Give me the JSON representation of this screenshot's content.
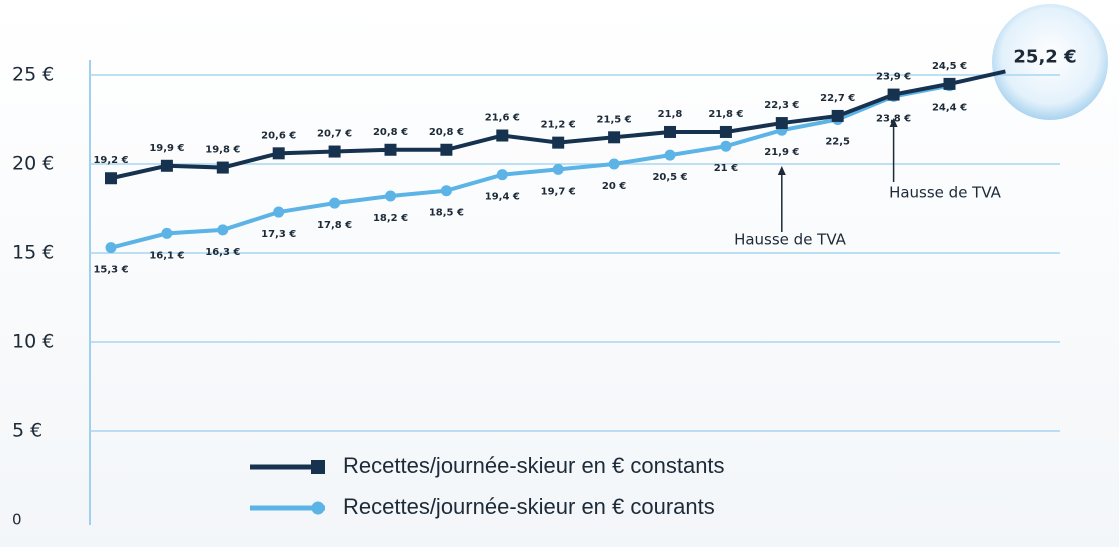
{
  "chart_data": {
    "type": "line",
    "categories": [
      null,
      null,
      null,
      null,
      null,
      null,
      null,
      null,
      null,
      null,
      null,
      null,
      null,
      null,
      null,
      null,
      null
    ],
    "series": [
      {
        "name": "Recettes/journée-skieur en € constants",
        "color": "#16324f",
        "marker": "square",
        "values": [
          19.2,
          19.9,
          19.8,
          20.6,
          20.7,
          20.8,
          20.8,
          21.6,
          21.2,
          21.5,
          21.8,
          21.8,
          22.3,
          22.7,
          23.9,
          24.5,
          25.2
        ],
        "value_labels": [
          "19,2 €",
          "19,9 €",
          "19,8 €",
          "20,6 €",
          "20,7 €",
          "20,8 €",
          "20,8 €",
          "21,6 €",
          "21,2 €",
          "21,5 €",
          "21,8",
          "21,8 €",
          "22,3 €",
          "22,7 €",
          "23,9 €",
          "24,5 €",
          "25,2 €"
        ]
      },
      {
        "name": "Recettes/journée-skieur en € courants",
        "color": "#5bb3e6",
        "marker": "circle",
        "values": [
          15.3,
          16.1,
          16.3,
          17.3,
          17.8,
          18.2,
          18.5,
          19.4,
          19.7,
          20,
          20.5,
          21,
          21.9,
          22.5,
          23.8,
          24.4,
          null
        ],
        "value_labels": [
          "15,3 €",
          "16,1 €",
          "16,3 €",
          "17,3 €",
          "17,8 €",
          "18,2 €",
          "18,5 €",
          "19,4 €",
          "19,7 €",
          "20 €",
          "20,5 €",
          "21 €",
          "21,9 €",
          "22,5",
          "23,8 €",
          "24,4 €",
          null
        ]
      }
    ],
    "ylim": [
      0,
      25.5
    ],
    "yticks": [
      0,
      {
        "value": 5,
        "label": "5 €"
      },
      {
        "value": 10,
        "label": "10 €"
      },
      {
        "value": 15,
        "label": "15 €"
      },
      {
        "value": 20,
        "label": "20 €"
      },
      {
        "value": 25,
        "label": "25 €"
      }
    ],
    "grid": true,
    "annotations": [
      {
        "text": "Hausse de TVA",
        "at": 12
      },
      {
        "text": "Hausse de TVA",
        "at": 14
      }
    ]
  }
}
